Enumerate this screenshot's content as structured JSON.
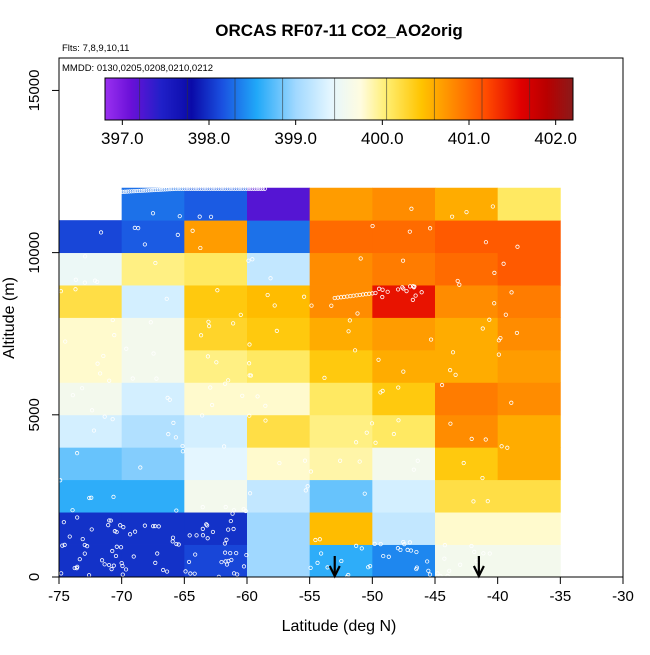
{
  "chart_data": {
    "type": "heatmap",
    "title": "ORCAS RF07-11 CO2_AO2orig",
    "annotations": {
      "flights": "Flts: 7,8,9,10,11",
      "dates": "MMDD: 0130,0205,0208,0210,0212"
    },
    "xlabel": "Latitude (deg N)",
    "ylabel": "Altitude (m)",
    "xlim": [
      -75,
      -30
    ],
    "ylim": [
      0,
      16000
    ],
    "x_ticks": [
      -75,
      -70,
      -65,
      -60,
      -55,
      -50,
      -45,
      -40,
      -35,
      -30
    ],
    "x_tick_labels": [
      "-75",
      "-70",
      "-65",
      "-60",
      "-55",
      "-50",
      "-45",
      "-40",
      "-35",
      "-30"
    ],
    "y_ticks": [
      0,
      5000,
      10000,
      15000
    ],
    "y_tick_labels": [
      "0",
      "5000",
      "10000",
      "15000"
    ],
    "colorbar": {
      "min": 396.8,
      "max": 402.2,
      "ticks": [
        397.0,
        398.0,
        399.0,
        400.0,
        401.0,
        402.0
      ],
      "tick_labels": [
        "397.0",
        "398.0",
        "399.0",
        "400.0",
        "401.0",
        "402.0"
      ],
      "stops": [
        {
          "v": 396.8,
          "c": "#9a30f0"
        },
        {
          "v": 397.1,
          "c": "#6a10d8"
        },
        {
          "v": 397.45,
          "c": "#2020c8"
        },
        {
          "v": 397.8,
          "c": "#0a0aa8"
        },
        {
          "v": 398.15,
          "c": "#1a50e0"
        },
        {
          "v": 398.55,
          "c": "#20a8f8"
        },
        {
          "v": 399.0,
          "c": "#a0d8ff"
        },
        {
          "v": 399.4,
          "c": "#e4f6ff"
        },
        {
          "v": 399.75,
          "c": "#fffce0"
        },
        {
          "v": 400.05,
          "c": "#ffee70"
        },
        {
          "v": 400.45,
          "c": "#ffc400"
        },
        {
          "v": 400.8,
          "c": "#ff8c00"
        },
        {
          "v": 401.2,
          "c": "#ff4a00"
        },
        {
          "v": 401.6,
          "c": "#e00000"
        },
        {
          "v": 401.9,
          "c": "#b80000"
        },
        {
          "v": 402.2,
          "c": "#8b1a1a"
        }
      ],
      "dividers": [
        397.2,
        397.75,
        398.3,
        398.85,
        399.45,
        400.05,
        400.6,
        401.15,
        401.7
      ]
    },
    "lat_edges": [
      -75,
      -70,
      -65,
      -60,
      -55,
      -50,
      -45,
      -40,
      -35
    ],
    "alt_edges": [
      0,
      1000,
      2000,
      3000,
      4000,
      5000,
      6000,
      7000,
      8000,
      9000,
      10000,
      11000,
      12000
    ],
    "cells": [
      [
        398.0,
        398.0,
        398.1,
        399.0,
        398.6,
        398.4,
        399.6,
        399.6
      ],
      [
        398.0,
        398.0,
        398.0,
        399.0,
        400.5,
        399.2,
        399.8,
        399.8
      ],
      [
        398.6,
        398.6,
        399.6,
        399.2,
        398.8,
        399.3,
        400.2,
        400.2
      ],
      [
        398.8,
        398.9,
        399.4,
        399.8,
        399.9,
        399.6,
        400.4,
        400.6
      ],
      [
        399.3,
        399.1,
        399.3,
        400.2,
        400.0,
        400.1,
        400.8,
        400.6
      ],
      [
        399.6,
        399.3,
        399.8,
        399.8,
        400.1,
        400.4,
        400.9,
        400.8
      ],
      [
        399.8,
        399.6,
        400.0,
        400.1,
        400.4,
        400.6,
        400.6,
        400.7
      ],
      [
        399.8,
        399.6,
        400.3,
        400.4,
        400.6,
        400.7,
        400.6,
        400.8
      ],
      [
        400.2,
        399.3,
        400.4,
        400.5,
        400.8,
        401.5,
        400.8,
        400.9
      ],
      [
        399.5,
        400.0,
        400.1,
        399.2,
        400.8,
        400.9,
        401.0,
        401.1
      ],
      [
        398.1,
        398.2,
        400.7,
        398.3,
        401.0,
        401.0,
        401.1,
        401.1
      ],
      [
        null,
        398.3,
        398.2,
        397.2,
        400.7,
        400.8,
        400.6,
        400.1
      ]
    ],
    "markers": {
      "type": "downward-arrow",
      "latitudes": [
        -53,
        -41.5
      ]
    }
  }
}
